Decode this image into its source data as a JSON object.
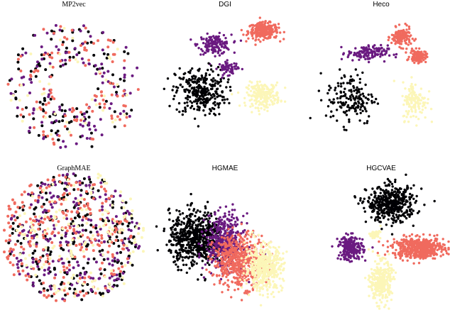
{
  "figure": {
    "palette": {
      "class_0": "#000004",
      "class_1": "#6a1a80",
      "class_2": "#f06a5e",
      "class_3": "#fcf6b8"
    }
  },
  "chart_data": [
    {
      "type": "scatter",
      "title": "MP2vec",
      "description_style": "mixed",
      "clusters": [
        {
          "class": 0,
          "center": [
            0,
            0
          ],
          "spread": [
            1,
            1
          ],
          "n": 110
        },
        {
          "class": 1,
          "center": [
            0,
            0
          ],
          "spread": [
            1,
            1
          ],
          "n": 110
        },
        {
          "class": 2,
          "center": [
            0,
            0
          ],
          "spread": [
            1,
            1
          ],
          "n": 110
        },
        {
          "class": 3,
          "center": [
            0,
            0
          ],
          "spread": [
            1,
            1
          ],
          "n": 40
        }
      ]
    },
    {
      "type": "scatter",
      "title": "DGI",
      "clusters": [
        {
          "class": 2,
          "center": [
            0.55,
            0.75
          ],
          "spread": [
            0.18,
            0.1
          ],
          "n": 260
        },
        {
          "class": 1,
          "center": [
            -0.15,
            0.55
          ],
          "spread": [
            0.2,
            0.12
          ],
          "n": 150
        },
        {
          "class": 0,
          "center": [
            -0.35,
            -0.15
          ],
          "spread": [
            0.3,
            0.3
          ],
          "n": 300
        },
        {
          "class": 3,
          "center": [
            0.55,
            -0.2
          ],
          "spread": [
            0.2,
            0.15
          ],
          "n": 220
        },
        {
          "class": 1,
          "center": [
            0.05,
            0.2
          ],
          "spread": [
            0.12,
            0.08
          ],
          "n": 60
        }
      ]
    },
    {
      "type": "scatter",
      "title": "Heco",
      "clusters": [
        {
          "class": 2,
          "center": [
            0.35,
            0.75
          ],
          "spread": [
            0.12,
            0.12
          ],
          "n": 150
        },
        {
          "class": 2,
          "center": [
            0.6,
            0.45
          ],
          "spread": [
            0.1,
            0.08
          ],
          "n": 120
        },
        {
          "class": 1,
          "center": [
            -0.15,
            0.5
          ],
          "spread": [
            0.25,
            0.1
          ],
          "n": 130
        },
        {
          "class": 0,
          "center": [
            -0.4,
            -0.2
          ],
          "spread": [
            0.3,
            0.35
          ],
          "n": 170
        },
        {
          "class": 3,
          "center": [
            0.55,
            -0.25
          ],
          "spread": [
            0.15,
            0.25
          ],
          "n": 130
        }
      ]
    },
    {
      "type": "scatter",
      "title": "GraphMAE",
      "clusters": [
        {
          "class": 0,
          "center": [
            0,
            0
          ],
          "spread": [
            1,
            1
          ],
          "n": 230
        },
        {
          "class": 1,
          "center": [
            0,
            0
          ],
          "spread": [
            1,
            1
          ],
          "n": 230
        },
        {
          "class": 2,
          "center": [
            -0.4,
            0
          ],
          "spread": [
            0.6,
            1
          ],
          "n": 260
        },
        {
          "class": 3,
          "center": [
            0.4,
            0.1
          ],
          "spread": [
            0.6,
            1
          ],
          "n": 150
        }
      ]
    },
    {
      "type": "scatter",
      "title": "HGMAE",
      "clusters": [
        {
          "class": 0,
          "center": [
            -0.4,
            0.1
          ],
          "spread": [
            0.32,
            0.35
          ],
          "n": 650
        },
        {
          "class": 1,
          "center": [
            0.0,
            0.05
          ],
          "spread": [
            0.22,
            0.35
          ],
          "n": 450
        },
        {
          "class": 2,
          "center": [
            0.2,
            -0.25
          ],
          "spread": [
            0.3,
            0.35
          ],
          "n": 550
        },
        {
          "class": 3,
          "center": [
            0.55,
            -0.35
          ],
          "spread": [
            0.22,
            0.3
          ],
          "n": 450
        }
      ]
    },
    {
      "type": "scatter",
      "title": "HGCVAE",
      "clusters": [
        {
          "class": 0,
          "center": [
            0.15,
            0.55
          ],
          "spread": [
            0.3,
            0.22
          ],
          "n": 450
        },
        {
          "class": 1,
          "center": [
            -0.45,
            -0.1
          ],
          "spread": [
            0.15,
            0.15
          ],
          "n": 220
        },
        {
          "class": 2,
          "center": [
            0.55,
            -0.1
          ],
          "spread": [
            0.32,
            0.13
          ],
          "n": 500
        },
        {
          "class": 3,
          "center": [
            0.0,
            -0.6
          ],
          "spread": [
            0.13,
            0.25
          ],
          "n": 300
        },
        {
          "class": 3,
          "center": [
            -0.1,
            0.1
          ],
          "spread": [
            0.08,
            0.05
          ],
          "n": 40
        }
      ]
    }
  ]
}
